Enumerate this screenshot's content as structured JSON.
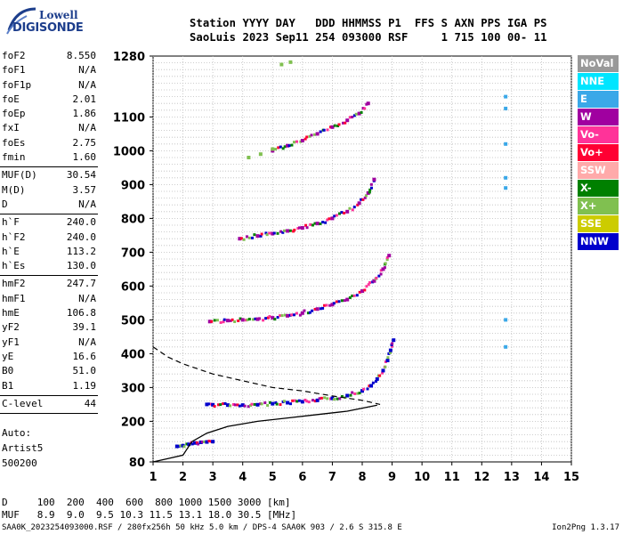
{
  "logo": {
    "line1": "Lowell",
    "line2": "DIGISONDE"
  },
  "header": {
    "line1": "Station YYYY DAY   DDD HHMMSS P1  FFS S AXN PPS IGA PS",
    "line2": "SaoLuis 2023 Sep11 254 093000 RSF     1 715 100 00- 11"
  },
  "params": {
    "group1": [
      {
        "name": "foF2",
        "value": "8.550"
      },
      {
        "name": "foF1",
        "value": "N/A"
      },
      {
        "name": "foF1p",
        "value": "N/A"
      },
      {
        "name": "foE",
        "value": "2.01"
      },
      {
        "name": "foEp",
        "value": "1.86"
      },
      {
        "name": "fxI",
        "value": "N/A"
      },
      {
        "name": "foEs",
        "value": "2.75"
      },
      {
        "name": "fmin",
        "value": "1.60"
      }
    ],
    "group2": [
      {
        "name": "MUF(D)",
        "value": "30.54"
      },
      {
        "name": "M(D)",
        "value": "3.57"
      },
      {
        "name": "D",
        "value": "N/A"
      }
    ],
    "group3": [
      {
        "name": "h`F",
        "value": "240.0"
      },
      {
        "name": "h`F2",
        "value": "240.0"
      },
      {
        "name": "h`E",
        "value": "113.2"
      },
      {
        "name": "h`Es",
        "value": "130.0"
      }
    ],
    "group4": [
      {
        "name": "hmF2",
        "value": "247.7"
      },
      {
        "name": "hmF1",
        "value": "N/A"
      },
      {
        "name": "hmE",
        "value": "106.8"
      },
      {
        "name": "yF2",
        "value": "39.1"
      },
      {
        "name": "yF1",
        "value": "N/A"
      },
      {
        "name": "yE",
        "value": "16.6"
      },
      {
        "name": "B0",
        "value": "51.0"
      },
      {
        "name": "B1",
        "value": "1.19"
      }
    ],
    "group5": [
      {
        "name": "C-level",
        "value": "44"
      }
    ]
  },
  "autoscale": {
    "line1": "Auto:",
    "line2": "Artist5",
    "line3": "500200"
  },
  "legend": [
    {
      "label": "NoVal",
      "color": "#999999"
    },
    {
      "label": "NNE",
      "color": "#00e5ff"
    },
    {
      "label": "E",
      "color": "#3aa8e8"
    },
    {
      "label": "W",
      "color": "#a000a0"
    },
    {
      "label": "Vo-",
      "color": "#ff3399"
    },
    {
      "label": "Vo+",
      "color": "#ff0033"
    },
    {
      "label": "SSW",
      "color": "#ffaaaa"
    },
    {
      "label": "X-",
      "color": "#008000"
    },
    {
      "label": "X+",
      "color": "#80c050"
    },
    {
      "label": "SSE",
      "color": "#cccc00"
    },
    {
      "label": "NNW",
      "color": "#0000cc"
    }
  ],
  "footer": {
    "muf_line1": "D     100  200  400  600  800 1000 1500 3000 [km]",
    "muf_line2": "MUF   8.9  9.0  9.5 10.3 11.5 13.1 18.0 30.5 [MHz]",
    "file_info": "SAA0K_2023254093000.RSF / 280fx256h 50 kHz 5.0 km / DPS-4 SAA0K 903 / 2.6 S 315.8 E",
    "version": "Ion2Png 1.3.17"
  },
  "chart_data": {
    "type": "scatter",
    "x_range": [
      1,
      15
    ],
    "y_range": [
      80,
      1280
    ],
    "x_ticks": [
      1,
      2,
      3,
      4,
      5,
      6,
      7,
      8,
      9,
      10,
      11,
      12,
      13,
      14,
      15
    ],
    "y_ticks": [
      80,
      200,
      300,
      400,
      500,
      600,
      700,
      800,
      900,
      1000,
      1100,
      1280
    ],
    "grid": true,
    "traces": [
      {
        "name": "E echo",
        "color": "#0000cc",
        "points": [
          [
            1.8,
            126
          ],
          [
            2.0,
            128
          ],
          [
            2.2,
            132
          ],
          [
            2.4,
            136
          ],
          [
            2.6,
            138
          ],
          [
            2.8,
            139
          ],
          [
            3.0,
            140
          ]
        ]
      },
      {
        "name": "F 1st hop",
        "color": "#0000cc",
        "points": [
          [
            2.8,
            250
          ],
          [
            3.0,
            249
          ],
          [
            3.5,
            248
          ],
          [
            4.0,
            248
          ],
          [
            4.5,
            249
          ],
          [
            5.0,
            252
          ],
          [
            5.5,
            255
          ],
          [
            6.0,
            258
          ],
          [
            6.5,
            262
          ],
          [
            7.0,
            268
          ],
          [
            7.5,
            276
          ],
          [
            8.0,
            290
          ],
          [
            8.3,
            305
          ],
          [
            8.5,
            325
          ],
          [
            8.7,
            350
          ],
          [
            8.85,
            380
          ],
          [
            8.95,
            410
          ],
          [
            9.05,
            440
          ]
        ]
      },
      {
        "name": "F 2nd hop",
        "color": "#a000a0",
        "points": [
          [
            2.9,
            495
          ],
          [
            3.5,
            498
          ],
          [
            4.0,
            500
          ],
          [
            4.5,
            502
          ],
          [
            5.0,
            506
          ],
          [
            5.5,
            512
          ],
          [
            6.0,
            520
          ],
          [
            6.5,
            532
          ],
          [
            7.0,
            545
          ],
          [
            7.5,
            560
          ],
          [
            8.0,
            585
          ],
          [
            8.4,
            615
          ],
          [
            8.7,
            650
          ],
          [
            8.9,
            690
          ]
        ]
      },
      {
        "name": "F 3rd hop",
        "color": "#a000a0",
        "points": [
          [
            3.9,
            740
          ],
          [
            4.5,
            748
          ],
          [
            5.0,
            755
          ],
          [
            5.5,
            763
          ],
          [
            6.0,
            772
          ],
          [
            6.5,
            785
          ],
          [
            7.0,
            800
          ],
          [
            7.5,
            820
          ],
          [
            7.9,
            845
          ],
          [
            8.2,
            875
          ],
          [
            8.4,
            915
          ]
        ]
      },
      {
        "name": "F 4th hop",
        "color": "#a000a0",
        "points": [
          [
            5.0,
            1000
          ],
          [
            5.5,
            1015
          ],
          [
            6.0,
            1030
          ],
          [
            6.5,
            1050
          ],
          [
            7.0,
            1070
          ],
          [
            7.5,
            1090
          ],
          [
            7.9,
            1110
          ],
          [
            8.2,
            1140
          ]
        ]
      },
      {
        "name": "F 5th hop",
        "color": "#80c050",
        "points": [
          [
            4.2,
            980
          ],
          [
            4.6,
            990
          ],
          [
            5.0,
            1005
          ],
          [
            5.3,
            1255
          ],
          [
            5.6,
            1262
          ]
        ]
      },
      {
        "name": "Interference 12.8 MHz",
        "color": "#3aa8e8",
        "points": [
          [
            12.8,
            420
          ],
          [
            12.8,
            500
          ],
          [
            12.8,
            890
          ],
          [
            12.8,
            920
          ],
          [
            12.8,
            1020
          ],
          [
            12.8,
            1125
          ],
          [
            12.8,
            1160
          ]
        ]
      }
    ],
    "profile_solid": [
      [
        1.0,
        80
      ],
      [
        1.5,
        90
      ],
      [
        2.0,
        100
      ],
      [
        2.3,
        140
      ],
      [
        2.8,
        165
      ],
      [
        3.5,
        185
      ],
      [
        4.5,
        200
      ],
      [
        5.5,
        210
      ],
      [
        6.5,
        220
      ],
      [
        7.5,
        230
      ],
      [
        8.5,
        248
      ]
    ],
    "profile_dashed": [
      [
        1.0,
        420
      ],
      [
        1.5,
        390
      ],
      [
        2.0,
        370
      ],
      [
        3.0,
        340
      ],
      [
        4.0,
        320
      ],
      [
        5.0,
        300
      ],
      [
        6.0,
        290
      ],
      [
        7.0,
        275
      ],
      [
        8.0,
        262
      ],
      [
        8.6,
        250
      ]
    ]
  }
}
